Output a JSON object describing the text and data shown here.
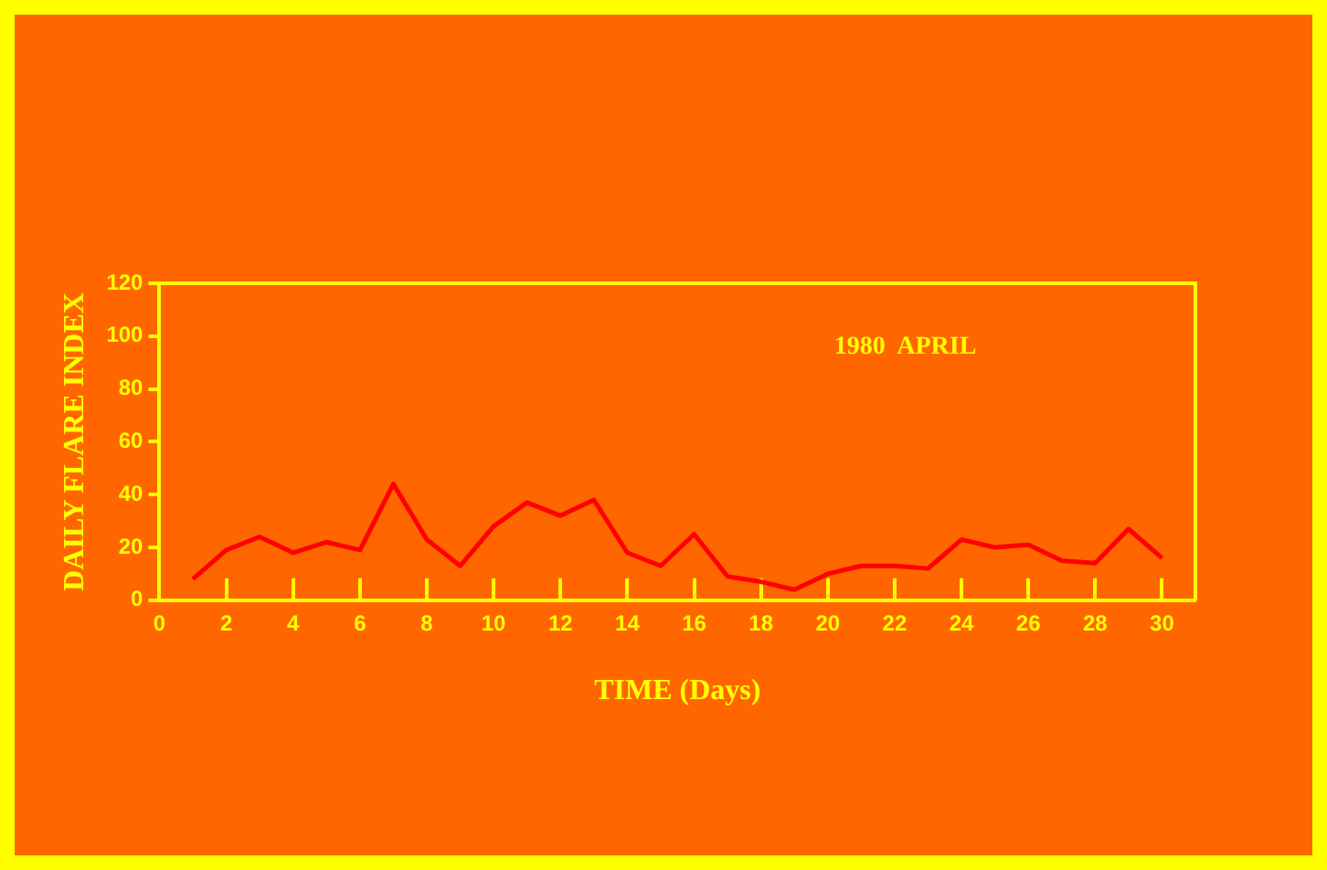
{
  "chart_data": {
    "type": "line",
    "xlabel": "TIME (Days)",
    "ylabel": "DAILY FLARE INDEX",
    "annotations": [
      "1980  APRIL"
    ],
    "x": [
      1,
      2,
      3,
      4,
      5,
      6,
      7,
      8,
      9,
      10,
      11,
      12,
      13,
      14,
      15,
      16,
      17,
      18,
      19,
      20,
      21,
      22,
      23,
      24,
      25,
      26,
      27,
      28,
      29,
      30
    ],
    "series": [
      {
        "color": "#ff0000",
        "values": [
          8,
          19,
          24,
          18,
          22,
          19,
          44,
          23,
          13,
          28,
          37,
          32,
          38,
          18,
          13,
          25,
          9,
          7,
          4,
          10,
          13,
          13,
          12,
          23,
          20,
          21,
          15,
          14,
          27,
          16
        ]
      }
    ],
    "xlim": [
      0,
      31
    ],
    "xticks": [
      0,
      2,
      4,
      6,
      8,
      10,
      12,
      14,
      16,
      18,
      20,
      22,
      24,
      26,
      28,
      30
    ],
    "ylim": [
      0,
      120
    ],
    "yticks": [
      0,
      20,
      40,
      60,
      80,
      100,
      120
    ],
    "grid": false,
    "legend": false,
    "marker": "none",
    "line_style": "solid"
  }
}
